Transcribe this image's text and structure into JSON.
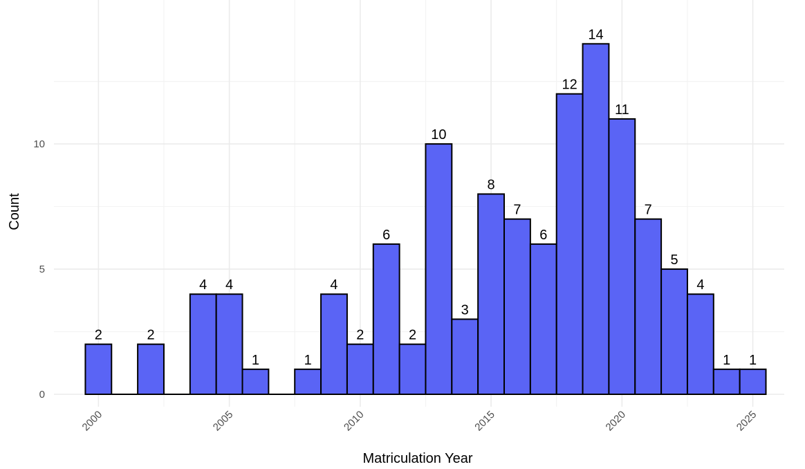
{
  "chart_data": {
    "type": "bar",
    "title": "",
    "xlabel": "Matriculation Year",
    "ylabel": "Count",
    "bar_color": "#5a64f5",
    "bar_edge_color": "#000000",
    "categories": [
      2000,
      2001,
      2002,
      2003,
      2004,
      2005,
      2006,
      2007,
      2008,
      2009,
      2010,
      2011,
      2012,
      2013,
      2014,
      2015,
      2016,
      2017,
      2018,
      2019,
      2020,
      2021,
      2022,
      2023,
      2024,
      2025
    ],
    "values": [
      2,
      0,
      2,
      0,
      4,
      4,
      1,
      0,
      1,
      4,
      2,
      6,
      2,
      10,
      3,
      8,
      7,
      6,
      12,
      14,
      11,
      7,
      5,
      4,
      1,
      1
    ],
    "ylim": [
      0,
      14.7
    ],
    "xlim": [
      1998.3,
      2026.2
    ],
    "y_ticks": [
      0,
      5,
      10
    ],
    "x_ticks": [
      2000,
      2005,
      2010,
      2015,
      2020,
      2025
    ],
    "grid": true,
    "legend": "none"
  }
}
